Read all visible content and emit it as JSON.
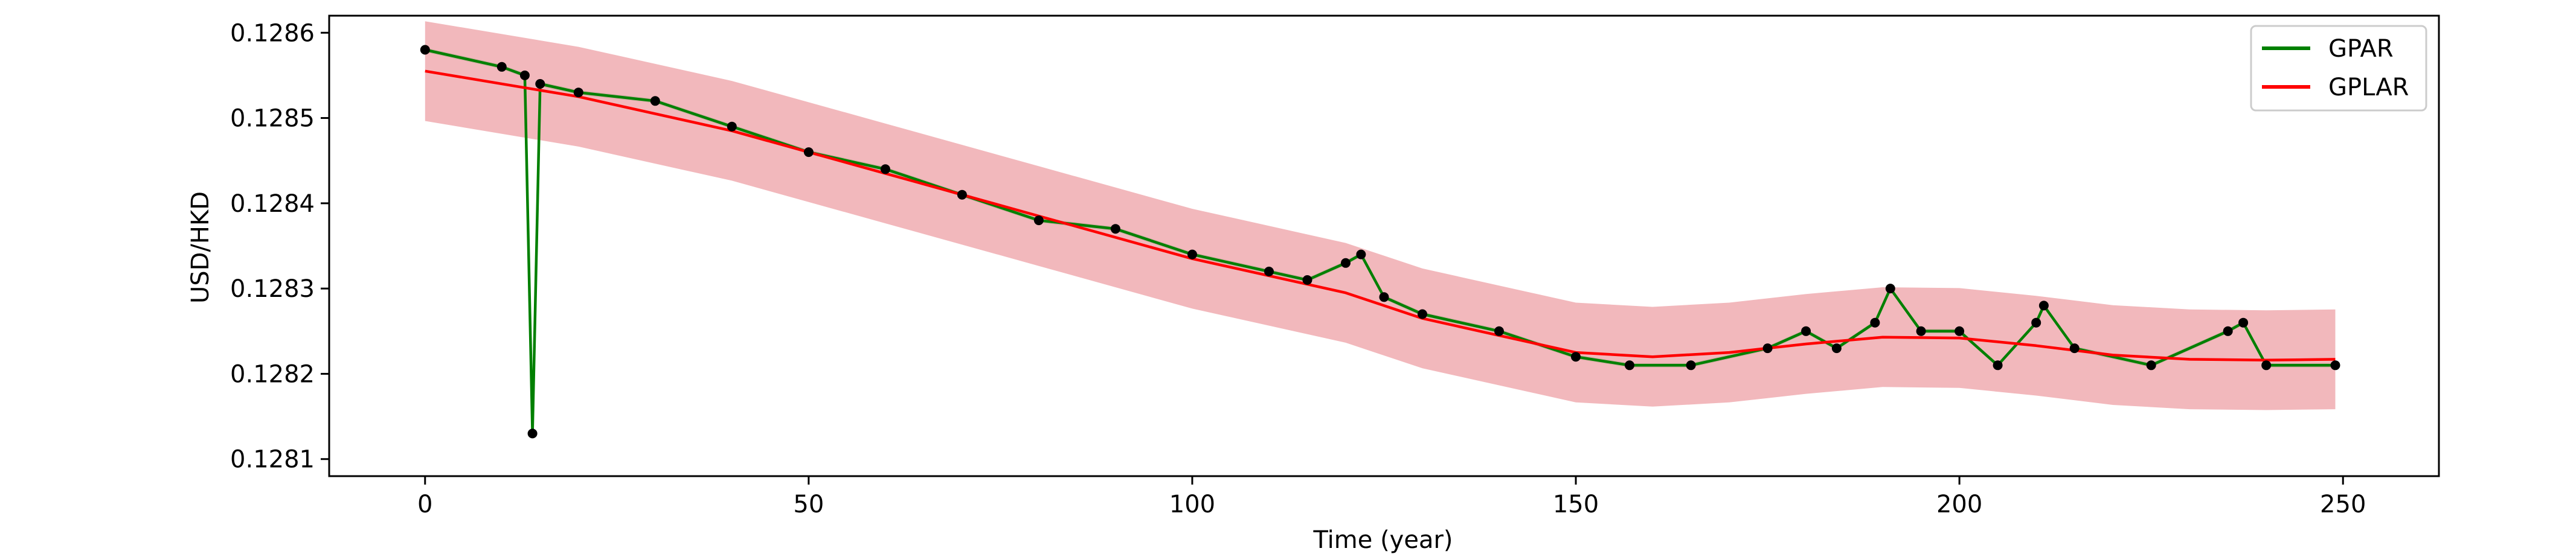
{
  "chart_data": {
    "type": "line",
    "title": "",
    "xlabel": "Time (year)",
    "ylabel": "USD/HKD",
    "xlim": [
      -12.5,
      262.5
    ],
    "ylim": [
      0.12808,
      0.12862
    ],
    "xticks": [
      0,
      50,
      100,
      150,
      200,
      250
    ],
    "xtick_labels": [
      "0",
      "50",
      "100",
      "150",
      "200",
      "250"
    ],
    "yticks": [
      0.1281,
      0.1282,
      0.1283,
      0.1284,
      0.1285,
      0.1286
    ],
    "ytick_labels": [
      "0.1281",
      "0.1282",
      "0.1283",
      "0.1284",
      "0.1285",
      "0.1286"
    ],
    "grid": false,
    "legend": {
      "placement": "top-right",
      "entries": [
        "GPAR",
        "GPLAR"
      ]
    },
    "colors": {
      "gpar": "#008000",
      "gplar": "#ff0000",
      "gplar_band": "#f2b8bc",
      "gpar_band": "#c8a89a",
      "observations": "#000000"
    },
    "gplar_band_halfwidth": 5.85e-05,
    "gpar_band_halfwidth": 2.5e-06,
    "observations": {
      "x": [
        0,
        10,
        13,
        14,
        15,
        20,
        30,
        40,
        50,
        60,
        70,
        80,
        90,
        100,
        110,
        115,
        120,
        122,
        125,
        130,
        140,
        150,
        157,
        165,
        175,
        180,
        184,
        189,
        191,
        195,
        200,
        205,
        210,
        211,
        215,
        225,
        235,
        237,
        240,
        249
      ],
      "y": [
        0.12858,
        0.12856,
        0.12855,
        0.12813,
        0.12854,
        0.12853,
        0.12852,
        0.12849,
        0.12846,
        0.12844,
        0.12841,
        0.12838,
        0.12837,
        0.12834,
        0.12832,
        0.12831,
        0.12833,
        0.12834,
        0.12829,
        0.12827,
        0.12825,
        0.12822,
        0.12821,
        0.12821,
        0.12823,
        0.12825,
        0.12823,
        0.12826,
        0.1283,
        0.12825,
        0.12825,
        0.12821,
        0.12826,
        0.12828,
        0.12823,
        0.12821,
        0.12825,
        0.12826,
        0.12821,
        0.12821
      ]
    },
    "series": [
      {
        "name": "GPAR",
        "x": [
          0,
          10,
          13,
          14,
          15,
          20,
          30,
          40,
          50,
          60,
          70,
          80,
          90,
          100,
          110,
          115,
          120,
          122,
          125,
          130,
          140,
          150,
          157,
          165,
          175,
          180,
          184,
          189,
          191,
          195,
          200,
          205,
          210,
          211,
          215,
          225,
          235,
          237,
          240,
          249
        ],
        "values": [
          0.12858,
          0.12856,
          0.12855,
          0.12813,
          0.12854,
          0.12853,
          0.12852,
          0.12849,
          0.12846,
          0.12844,
          0.12841,
          0.12838,
          0.12837,
          0.12834,
          0.12832,
          0.12831,
          0.12833,
          0.12834,
          0.12829,
          0.12827,
          0.12825,
          0.12822,
          0.12821,
          0.12821,
          0.12823,
          0.12825,
          0.12823,
          0.12826,
          0.1283,
          0.12825,
          0.12825,
          0.12821,
          0.12826,
          0.12828,
          0.12823,
          0.12821,
          0.12825,
          0.12826,
          0.12821,
          0.12821
        ]
      },
      {
        "name": "GPLAR",
        "x": [
          0,
          20,
          40,
          60,
          80,
          100,
          120,
          130,
          140,
          150,
          160,
          170,
          180,
          190,
          200,
          210,
          220,
          230,
          240,
          249
        ],
        "values": [
          0.128555,
          0.128525,
          0.128485,
          0.128435,
          0.128385,
          0.128335,
          0.128295,
          0.128265,
          0.128245,
          0.128225,
          0.12822,
          0.128225,
          0.128235,
          0.128243,
          0.128242,
          0.128233,
          0.128222,
          0.128217,
          0.128216,
          0.128217
        ]
      }
    ]
  }
}
